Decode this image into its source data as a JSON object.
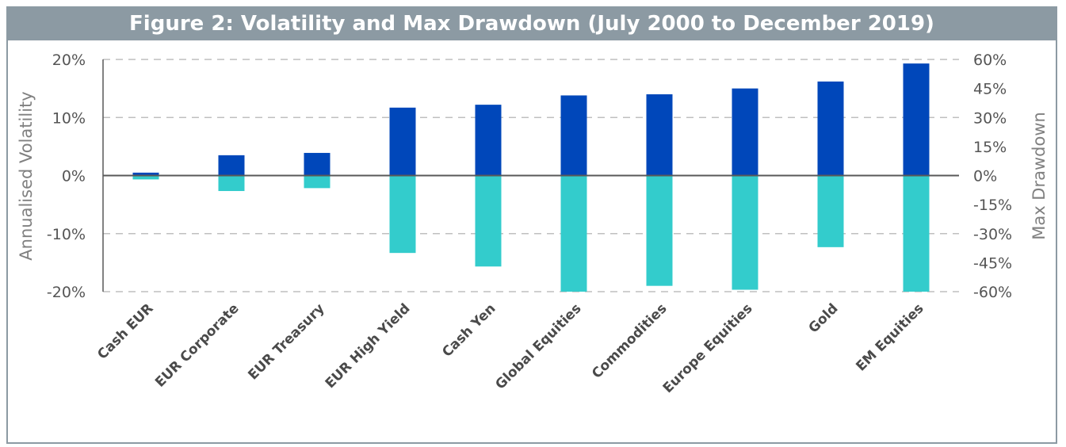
{
  "chart_data": {
    "type": "bar",
    "title": "Figure 2: Volatility and Max Drawdown (July 2000 to December 2019)",
    "categories": [
      "Cash EUR",
      "EUR Corporate",
      "EUR Treasury",
      "EUR High Yield",
      "Cash Yen",
      "Global Equities",
      "Commodities",
      "Europe Equities",
      "Gold",
      "EM Equities"
    ],
    "series": [
      {
        "name": "Annualised Volatility",
        "axis": "left",
        "color": "#0047ba",
        "values": [
          0.5,
          3.5,
          3.9,
          11.7,
          12.2,
          13.8,
          14.0,
          15.0,
          16.2,
          19.3
        ]
      },
      {
        "name": "Max Drawdown",
        "axis": "right",
        "color": "#33cccc",
        "values": [
          -2,
          -8,
          -6.5,
          -40,
          -47,
          -60,
          -57,
          -59,
          -37,
          -60
        ]
      }
    ],
    "ylabel": "Annualised Volatility",
    "y2label": "Max Drawdown",
    "ylim": [
      -20,
      20
    ],
    "y2lim": [
      -60,
      60
    ],
    "yticks": [
      "20%",
      "10%",
      "0%",
      "-10%",
      "-20%"
    ],
    "y2ticks": [
      "60%",
      "45%",
      "30%",
      "15%",
      "0%",
      "-15%",
      "-30%",
      "-45%",
      "-60%"
    ],
    "grid": true,
    "colors": {
      "title_bg": "#8c9aa3",
      "grid": "#bfbfbf",
      "axis": "#595959"
    }
  }
}
